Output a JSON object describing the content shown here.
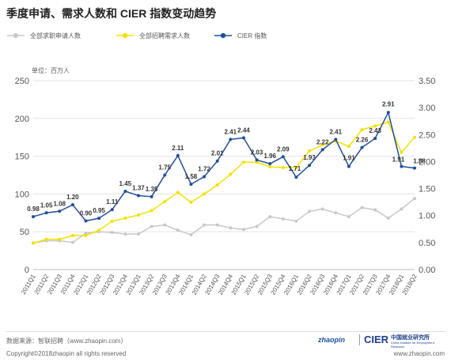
{
  "title": "季度申请、需求人数和 CIER 指数变动趋势",
  "legend": [
    {
      "label": "全部求职申请人数",
      "color": "#c8c8c8"
    },
    {
      "label": "全部招聘需求人数",
      "color": "#f5e100"
    },
    {
      "label": "CIER 指数",
      "color": "#1f4e9c"
    }
  ],
  "unit_label": "单位：百万人",
  "footer": {
    "source": "数据来源：智联招聘（www.zhaopin.com）",
    "copyright": "Copyright©2018zhaopin all rights reserved",
    "website": "www.zhaopin.com",
    "logo_zhaopin": "zhaopin",
    "logo_cier": "CIER",
    "logo_cier_cn": "中国就业研究所",
    "logo_cier_en": "China Institute for Employment Research"
  },
  "chart_data": {
    "type": "line",
    "categories": [
      "2011Q1",
      "2011Q2",
      "2011Q3",
      "2011Q4",
      "2012Q1",
      "2012Q2",
      "2012Q3",
      "2012Q4",
      "2013Q1",
      "2013Q2",
      "2013Q3",
      "2013Q4",
      "2014Q1",
      "2014Q2",
      "2014Q3",
      "2014Q4",
      "2015Q1",
      "2015Q2",
      "2015Q3",
      "2015Q4",
      "2016Q1",
      "2016Q2",
      "2016Q3",
      "2016Q4",
      "2017Q1",
      "2017Q2",
      "2017Q3",
      "2017Q4",
      "2018Q1",
      "2018Q2"
    ],
    "y_left": {
      "min": 0,
      "max": 250,
      "ticks": [
        "0",
        "50",
        "100",
        "150",
        "200",
        "250"
      ]
    },
    "y_right": {
      "min": 0,
      "max": 3.5,
      "ticks": [
        "0.00",
        "0.50",
        "1.00",
        "1.50",
        "2.00",
        "2.50",
        "3.00",
        "3.50"
      ]
    },
    "grid": true,
    "series": [
      {
        "name": "全部求职申请人数",
        "axis": "left",
        "color": "#c8c8c8",
        "values": [
          35,
          38,
          38,
          36,
          48,
          50,
          49,
          47,
          47,
          57,
          59,
          52,
          46,
          59,
          59,
          55,
          53,
          57,
          70,
          67,
          64,
          77,
          80,
          75,
          70,
          82,
          79,
          68,
          80,
          94
        ]
      },
      {
        "name": "全部招聘需求人数",
        "axis": "left",
        "color": "#f5e100",
        "values": [
          35,
          40,
          40,
          45,
          45,
          52,
          64,
          68,
          72,
          78,
          90,
          102,
          89,
          100,
          112,
          126,
          142,
          142,
          136,
          135,
          135,
          157,
          165,
          170,
          163,
          185,
          190,
          195,
          155,
          175
        ]
      },
      {
        "name": "CIER 指数",
        "axis": "right",
        "color": "#1f4e9c",
        "values": [
          0.98,
          1.05,
          1.08,
          1.2,
          0.9,
          0.95,
          1.11,
          1.45,
          1.37,
          1.35,
          1.75,
          2.11,
          1.58,
          1.72,
          2.01,
          2.41,
          2.44,
          2.03,
          1.96,
          2.09,
          1.71,
          1.93,
          2.22,
          2.41,
          1.91,
          2.26,
          2.43,
          2.91,
          1.91,
          1.88
        ],
        "labels": [
          "0.98",
          "1.05",
          "1.08",
          "1.20",
          "0.90",
          "0.95",
          "1.11",
          "1.45",
          "1.37",
          "1.35",
          "1.75",
          "2.11",
          "1.58",
          "1.72",
          "2.01",
          "2.41",
          "2.44",
          "2.03",
          "1.96",
          "2.09",
          "1.71",
          "1.93",
          "2.22",
          "2.41",
          "1.91",
          "2.26",
          "2.43",
          "2.91",
          "1.91",
          "1.88"
        ]
      }
    ]
  }
}
